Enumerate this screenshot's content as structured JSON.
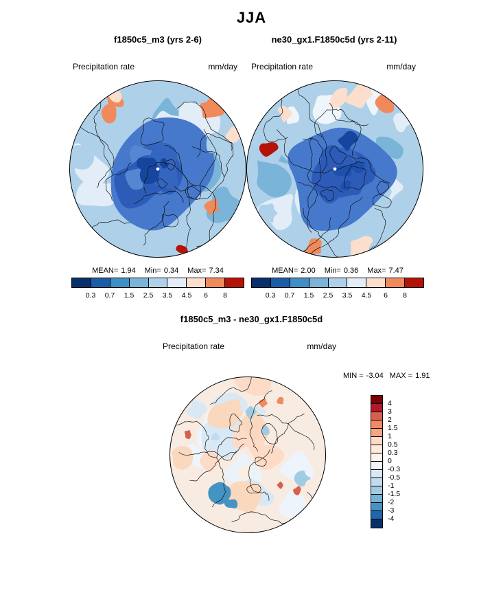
{
  "title": "JJA",
  "panels": [
    {
      "title": "f1850c5_m3 (yrs 2-6)",
      "field_label": "Precipitation rate",
      "units": "mm/day",
      "stats": {
        "mean_label": "MEAN=",
        "mean": "1.94",
        "min_label": "Min=",
        "min": "0.34",
        "max_label": "Max=",
        "max": "7.34"
      },
      "colorbar_ticks": [
        "0.3",
        "0.7",
        "1.5",
        "2.5",
        "3.5",
        "4.5",
        "6",
        "8"
      ]
    },
    {
      "title": "ne30_gx1.F1850c5d (yrs 2-11)",
      "field_label": "Precipitation rate",
      "units": "mm/day",
      "stats": {
        "mean_label": "MEAN=",
        "mean": "2.00",
        "min_label": "Min=",
        "min": "0.36",
        "max_label": "Max=",
        "max": "7.47"
      },
      "colorbar_ticks": [
        "0.3",
        "0.7",
        "1.5",
        "2.5",
        "3.5",
        "4.5",
        "6",
        "8"
      ]
    }
  ],
  "diff": {
    "title": "f1850c5_m3 - ne30_gx1.F1850c5d",
    "field_label": "Precipitation rate",
    "units": "mm/day",
    "stats": {
      "min_label": "MIN =",
      "min": "-3.04",
      "max_label": "MAX =",
      "max": "1.91"
    },
    "colorbar_ticks": [
      "4",
      "3",
      "2",
      "1.5",
      "1",
      "0.5",
      "0.3",
      "0",
      "-0.3",
      "-0.5",
      "-1",
      "-1.5",
      "-2",
      "-3",
      "-4"
    ]
  },
  "colors": {
    "precip_scale": [
      "#08306b",
      "#1c5ba6",
      "#3f8ec4",
      "#7ab4d9",
      "#aed1e9",
      "#e2edf7",
      "#fbdfcc",
      "#f08a5c",
      "#b51307"
    ],
    "diff_scale": [
      "#7f0000",
      "#b2182b",
      "#d6604d",
      "#ef8a62",
      "#f4a582",
      "#fddbc7",
      "#fee9db",
      "#fdf3ec",
      "#eef4fb",
      "#d9e8f5",
      "#c0dcee",
      "#a0cbe2",
      "#75b2d4",
      "#4393c3",
      "#2166ac",
      "#08306b"
    ],
    "map_outline": "#000000"
  },
  "chart_data": [
    {
      "type": "heatmap",
      "subtype": "polar-contour-map",
      "season": "JJA",
      "title": "f1850c5_m3 (yrs 2-6)",
      "variable": "Precipitation rate",
      "units": "mm/day",
      "stats": {
        "mean": 1.94,
        "min": 0.34,
        "max": 7.34
      },
      "contour_levels": [
        0.3,
        0.7,
        1.5,
        2.5,
        3.5,
        4.5,
        6,
        8
      ],
      "palette": [
        "#08306b",
        "#1c5ba6",
        "#3f8ec4",
        "#7ab4d9",
        "#aed1e9",
        "#e2edf7",
        "#fbdfcc",
        "#f08a5c",
        "#b51307"
      ],
      "legend_position": "below"
    },
    {
      "type": "heatmap",
      "subtype": "polar-contour-map",
      "season": "JJA",
      "title": "ne30_gx1.F1850c5d (yrs 2-11)",
      "variable": "Precipitation rate",
      "units": "mm/day",
      "stats": {
        "mean": 2.0,
        "min": 0.36,
        "max": 7.47
      },
      "contour_levels": [
        0.3,
        0.7,
        1.5,
        2.5,
        3.5,
        4.5,
        6,
        8
      ],
      "palette": [
        "#08306b",
        "#1c5ba6",
        "#3f8ec4",
        "#7ab4d9",
        "#aed1e9",
        "#e2edf7",
        "#fbdfcc",
        "#f08a5c",
        "#b51307"
      ],
      "legend_position": "below"
    },
    {
      "type": "heatmap",
      "subtype": "polar-contour-map",
      "season": "JJA",
      "title": "f1850c5_m3 - ne30_gx1.F1850c5d",
      "variable": "Precipitation rate",
      "units": "mm/day",
      "stats": {
        "min": -3.04,
        "max": 1.91
      },
      "contour_levels": [
        -4,
        -3,
        -2,
        -1.5,
        -1,
        -0.5,
        -0.3,
        0,
        0.3,
        0.5,
        1,
        1.5,
        2,
        3,
        4
      ],
      "palette": [
        "#08306b",
        "#2166ac",
        "#4393c3",
        "#75b2d4",
        "#a0cbe2",
        "#c0dcee",
        "#d9e8f5",
        "#eef4fb",
        "#fdf3ec",
        "#fee9db",
        "#fddbc7",
        "#f4a582",
        "#ef8a62",
        "#d6604d",
        "#b2182b",
        "#7f0000"
      ],
      "legend_position": "right"
    }
  ]
}
